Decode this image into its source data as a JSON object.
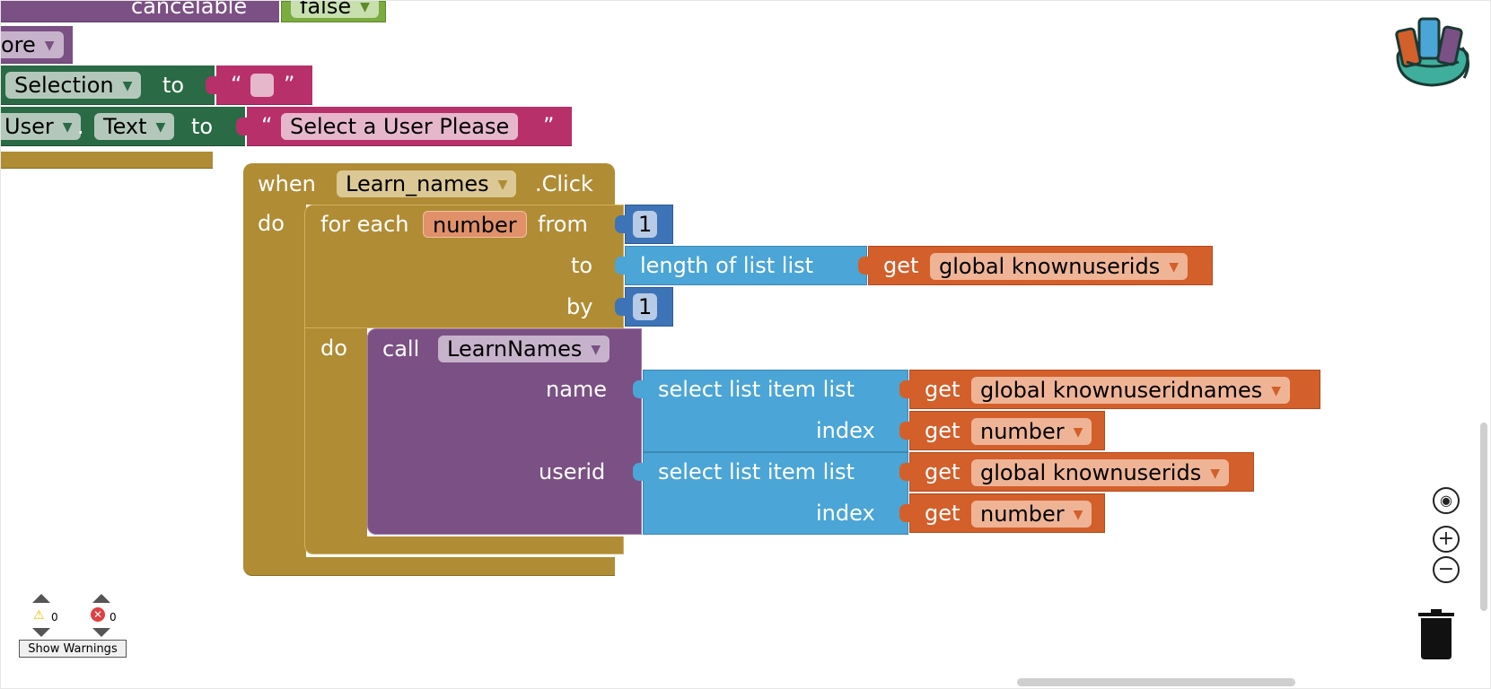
{
  "colors": {
    "purple": "#7b5084",
    "dark_green": "#2a6b46",
    "pink": "#b8306a",
    "olive": "#b08c35",
    "light_green": "#7cab40",
    "blue": "#4ba5d6",
    "dark_blue": "#3d74b7",
    "orange": "#d35f2b"
  },
  "top_blocks": {
    "cancelable_label": "cancelable",
    "false_value": "false",
    "more_value": "ore",
    "selection_dropdown": "Selection",
    "to_label": "to",
    "quote_open": "“",
    "quote_close": "”",
    "user_dropdown": "User",
    "dot": ".",
    "text_dropdown": "Text",
    "select_user_text": "Select a User Please"
  },
  "event": {
    "when_label": "when",
    "component_dropdown": "Learn_names",
    "event_name": ".Click",
    "do_label": "do"
  },
  "for_loop": {
    "for_each_label": "for each",
    "variable": "number",
    "from_label": "from",
    "from_value": "1",
    "to_label": "to",
    "length_label": "length of list  list",
    "get_label": "get",
    "list_var": "global knownuserids",
    "by_label": "by",
    "by_value": "1",
    "do_label": "do"
  },
  "call": {
    "call_label": "call",
    "procedure": "LearnNames",
    "name_arg": "name",
    "userid_arg": "userid",
    "select_label": "select list item  list",
    "index_label": "index",
    "get_label": "get",
    "names_var": "global knownuseridnames",
    "number_var": "number",
    "ids_var": "global knownuserids"
  },
  "warnings": {
    "warning_count": "0",
    "error_count": "0",
    "show_warnings_label": "Show Warnings"
  },
  "controls": {
    "zoom_in": "+",
    "zoom_out": "−"
  }
}
